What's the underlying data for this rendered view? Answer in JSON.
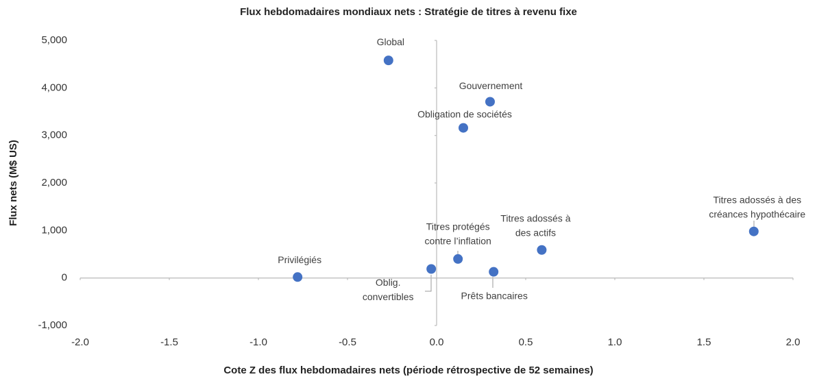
{
  "chart_data": {
    "type": "scatter",
    "title": "Flux hebdomadaires mondiaux nets : Stratégie de titres à revenu fixe",
    "x_label": "Cote Z des flux hebdomadaires nets (période rétrospective de 52 semaines)",
    "y_label": "Flux nets (M$ US)",
    "labels": [
      [
        "Global"
      ],
      [
        "Gouvernement"
      ],
      [
        "Obligation de sociétés"
      ],
      [
        "Titres adossés à des",
        "créances hypothécaire"
      ],
      [
        "Titres adossés à",
        "des actifs"
      ],
      [
        "Titres protégés",
        "contre l’inflation"
      ],
      [
        "Oblig.",
        "convertibles"
      ],
      [
        "Prêts bancaires"
      ],
      [
        "Privilégiés"
      ]
    ],
    "x": [
      -0.27,
      0.3,
      0.15,
      1.78,
      0.59,
      0.12,
      -0.03,
      0.32,
      -0.78
    ],
    "values": [
      4580,
      3710,
      3160,
      980,
      590,
      400,
      190,
      130,
      20
    ],
    "color": "#4472c4",
    "xlim": [
      -2,
      2
    ],
    "xticks": [
      {
        "value": -2,
        "label": "-2.0"
      },
      {
        "value": -1.5,
        "label": "-1.5"
      },
      {
        "value": -1,
        "label": "-1.0"
      },
      {
        "value": -0.5,
        "label": "-0.5"
      },
      {
        "value": 0,
        "label": "0.0"
      },
      {
        "value": 0.5,
        "label": "0.5"
      },
      {
        "value": 1,
        "label": "1.0"
      },
      {
        "value": 1.5,
        "label": "1.5"
      },
      {
        "value": 2,
        "label": "2.0"
      }
    ],
    "ylim": [
      -1000,
      5000
    ],
    "yticks": [
      {
        "value": -1000,
        "label": "-1,000"
      },
      0,
      {
        "value": 1000,
        "label": "1,000"
      },
      {
        "value": 2000,
        "label": "2,000"
      },
      {
        "value": 3000,
        "label": "3,000"
      },
      {
        "value": 4000,
        "label": "4,000"
      },
      {
        "value": 5000,
        "label": "5,000"
      }
    ]
  }
}
